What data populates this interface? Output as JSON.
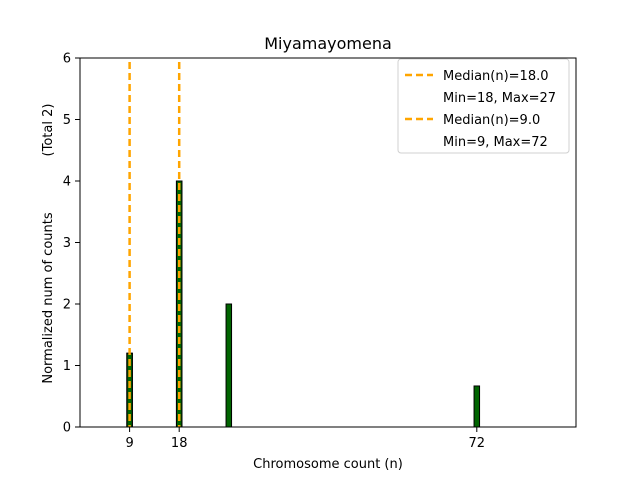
{
  "chart_data": {
    "type": "bar",
    "title": "Miyamayomena",
    "xlabel": "Chromosome count (n)",
    "ylabel": "Normalized num of counts",
    "ylabel_extra": "(Total 2)",
    "xlim": [
      0,
      90
    ],
    "ylim": [
      0,
      6
    ],
    "yticks": [
      0,
      1,
      2,
      3,
      4,
      5,
      6
    ],
    "xticks": [
      9,
      18,
      72
    ],
    "bar_width": 1,
    "bars": [
      {
        "x": 9,
        "value": 1.2
      },
      {
        "x": 18,
        "value": 4
      },
      {
        "x": 27,
        "value": 2
      },
      {
        "x": 72,
        "value": 0.667
      }
    ],
    "hist_outlines": [
      {
        "x": [
          0,
          31.5
        ],
        "values": [
          {
            "x": 9,
            "value": 1.2
          },
          {
            "x": 18,
            "value": 4
          }
        ]
      }
    ],
    "medians": [
      {
        "x": 18,
        "label": "Median(n)=18.0",
        "range_label": "Min=18, Max=27"
      },
      {
        "x": 9,
        "label": "Median(n)=9.0",
        "range_label": "Min=9, Max=72"
      }
    ],
    "legend_position": "top-right",
    "colors": {
      "bar_fill": "#006400",
      "bar_edge": "#000000",
      "median": "#FFA500",
      "axis": "#000000"
    }
  }
}
